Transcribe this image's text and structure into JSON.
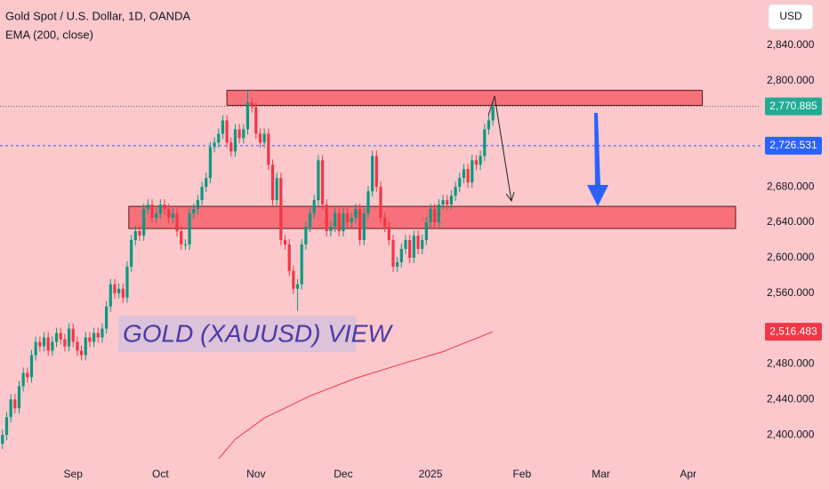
{
  "chart_data": {
    "type": "candlestick",
    "title": "Gold Spot / U.S. Dollar, 1D, OANDA",
    "subtitle": "EMA (200, close)",
    "annotation": "GOLD (XAUUSD) VIEW",
    "currency": "USD",
    "up_color": "#089981",
    "down_color": "#f23645",
    "xlim": [
      -0.6,
      182.4
    ],
    "xticks": [
      {
        "value": 17,
        "label": "Sep"
      },
      {
        "value": 38,
        "label": "Oct"
      },
      {
        "value": 61,
        "label": "Nov"
      },
      {
        "value": 82,
        "label": "Dec"
      },
      {
        "value": 103,
        "label": "2025"
      },
      {
        "value": 125,
        "label": "Feb"
      },
      {
        "value": 144,
        "label": "Mar"
      },
      {
        "value": 165,
        "label": "Apr"
      }
    ],
    "ylim": [
      2369,
      2891
    ],
    "yticks": [
      {
        "value": 2400,
        "label": "2,400.000"
      },
      {
        "value": 2440,
        "label": "2,440.000"
      },
      {
        "value": 2480,
        "label": "2,480.000"
      },
      {
        "value": 2560,
        "label": "2,560.000"
      },
      {
        "value": 2600,
        "label": "2,600.000"
      },
      {
        "value": 2640,
        "label": "2,640.000"
      },
      {
        "value": 2680,
        "label": "2,680.000"
      },
      {
        "value": 2800,
        "label": "2,800.000"
      },
      {
        "value": 2840,
        "label": "2,840.000"
      }
    ],
    "open": [
      2390,
      2400,
      2420,
      2440,
      2430,
      2455,
      2470,
      2465,
      2490,
      2505,
      2500,
      2510,
      2495,
      2505,
      2515,
      2508,
      2500,
      2520,
      2505,
      2495,
      2490,
      2510,
      2505,
      2515,
      2510,
      2520,
      2545,
      2570,
      2560,
      2565,
      2555,
      2590,
      2620,
      2630,
      2625,
      2655,
      2660,
      2645,
      2650,
      2660,
      2655,
      2645,
      2650,
      2630,
      2615,
      2615,
      2650,
      2655,
      2665,
      2680,
      2690,
      2725,
      2730,
      2740,
      2755,
      2730,
      2720,
      2745,
      2735,
      2745,
      2775,
      2770,
      2740,
      2730,
      2740,
      2705,
      2665,
      2690,
      2620,
      2615,
      2585,
      2565,
      2570,
      2615,
      2635,
      2650,
      2665,
      2710,
      2660,
      2630,
      2635,
      2650,
      2630,
      2650,
      2640,
      2645,
      2655,
      2620,
      2650,
      2675,
      2715,
      2680,
      2645,
      2635,
      2620,
      2590,
      2595,
      2610,
      2620,
      2600,
      2625,
      2610,
      2620,
      2640,
      2655,
      2640,
      2660,
      2665,
      2660,
      2670,
      2680,
      2690,
      2700,
      2685,
      2710,
      2705,
      2715,
      2745,
      2755
    ],
    "high": [
      2406,
      2426,
      2446,
      2446,
      2461,
      2476,
      2476,
      2496,
      2511,
      2511,
      2516,
      2516,
      2511,
      2521,
      2521,
      2514,
      2526,
      2526,
      2511,
      2501,
      2516,
      2516,
      2521,
      2521,
      2526,
      2551,
      2576,
      2576,
      2571,
      2571,
      2596,
      2626,
      2636,
      2636,
      2661,
      2666,
      2666,
      2656,
      2666,
      2666,
      2661,
      2656,
      2656,
      2636,
      2621,
      2656,
      2661,
      2671,
      2686,
      2696,
      2731,
      2736,
      2746,
      2761,
      2761,
      2736,
      2751,
      2751,
      2751,
      2790,
      2781,
      2776,
      2746,
      2746,
      2746,
      2711,
      2696,
      2696,
      2626,
      2621,
      2591,
      2576,
      2621,
      2641,
      2656,
      2671,
      2716,
      2716,
      2666,
      2641,
      2656,
      2656,
      2656,
      2656,
      2651,
      2661,
      2661,
      2656,
      2681,
      2721,
      2721,
      2686,
      2651,
      2641,
      2626,
      2601,
      2616,
      2626,
      2626,
      2631,
      2631,
      2626,
      2646,
      2661,
      2661,
      2666,
      2671,
      2671,
      2676,
      2686,
      2696,
      2706,
      2706,
      2716,
      2716,
      2721,
      2751,
      2761,
      2776
    ],
    "low": [
      2384,
      2394,
      2414,
      2424,
      2424,
      2449,
      2459,
      2459,
      2484,
      2494,
      2494,
      2489,
      2489,
      2499,
      2502,
      2494,
      2494,
      2499,
      2489,
      2484,
      2484,
      2499,
      2499,
      2504,
      2504,
      2514,
      2539,
      2554,
      2554,
      2549,
      2549,
      2584,
      2614,
      2619,
      2619,
      2649,
      2639,
      2639,
      2644,
      2649,
      2639,
      2639,
      2624,
      2609,
      2609,
      2609,
      2644,
      2649,
      2659,
      2674,
      2684,
      2719,
      2724,
      2734,
      2724,
      2714,
      2714,
      2729,
      2729,
      2739,
      2764,
      2734,
      2724,
      2724,
      2699,
      2659,
      2659,
      2614,
      2609,
      2579,
      2559,
      2540,
      2564,
      2609,
      2629,
      2644,
      2659,
      2654,
      2624,
      2624,
      2629,
      2624,
      2624,
      2634,
      2634,
      2639,
      2614,
      2614,
      2644,
      2669,
      2674,
      2639,
      2629,
      2614,
      2584,
      2584,
      2589,
      2604,
      2594,
      2594,
      2604,
      2604,
      2614,
      2634,
      2634,
      2634,
      2654,
      2654,
      2654,
      2664,
      2674,
      2684,
      2679,
      2679,
      2699,
      2699,
      2709,
      2739,
      2749
    ],
    "close": [
      2400,
      2420,
      2440,
      2430,
      2455,
      2470,
      2465,
      2490,
      2505,
      2500,
      2510,
      2495,
      2505,
      2515,
      2508,
      2500,
      2520,
      2505,
      2495,
      2490,
      2510,
      2505,
      2515,
      2510,
      2520,
      2545,
      2570,
      2560,
      2565,
      2555,
      2590,
      2620,
      2630,
      2625,
      2655,
      2660,
      2645,
      2650,
      2660,
      2655,
      2645,
      2650,
      2630,
      2615,
      2615,
      2650,
      2655,
      2665,
      2680,
      2690,
      2725,
      2730,
      2740,
      2755,
      2730,
      2720,
      2745,
      2735,
      2745,
      2775,
      2770,
      2740,
      2730,
      2740,
      2705,
      2665,
      2690,
      2620,
      2615,
      2585,
      2565,
      2570,
      2615,
      2635,
      2650,
      2665,
      2710,
      2660,
      2630,
      2635,
      2650,
      2630,
      2650,
      2640,
      2645,
      2655,
      2620,
      2650,
      2675,
      2715,
      2680,
      2645,
      2635,
      2620,
      2590,
      2595,
      2610,
      2620,
      2600,
      2625,
      2610,
      2620,
      2640,
      2655,
      2640,
      2660,
      2665,
      2660,
      2670,
      2680,
      2690,
      2700,
      2685,
      2710,
      2705,
      2715,
      2745,
      2755,
      2770
    ],
    "ema": {
      "color": "#f23645",
      "x": [
        52,
        56,
        63,
        74,
        85,
        96,
        106,
        118
      ],
      "values": [
        2373,
        2395,
        2419,
        2444,
        2464,
        2480,
        2494,
        2516.483
      ]
    },
    "zones": [
      {
        "x": [
          54,
          168.4
        ],
        "y": [
          2772,
          2789
        ]
      },
      {
        "x": [
          30.4,
          176.4
        ],
        "y": [
          2633,
          2658
        ]
      }
    ],
    "zone_color": "#f7707a",
    "price_labels": [
      {
        "value": 2770.885,
        "label": "2,770.885",
        "color": "#22ab94",
        "line": "dotted"
      },
      {
        "value": 2726.531,
        "label": "2,726.531",
        "color": "#2962ff",
        "line": "dashed"
      },
      {
        "value": 2516.483,
        "label": "2,516.483",
        "color": "#f23645"
      }
    ]
  }
}
